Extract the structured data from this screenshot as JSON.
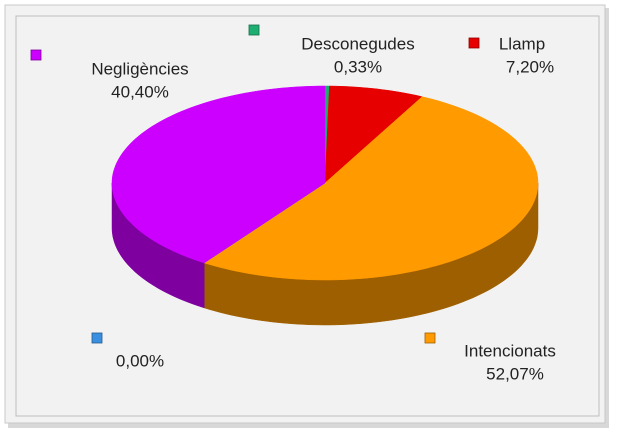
{
  "chart_data": {
    "type": "pie",
    "categories": [
      "Desconegudes",
      "Llamp",
      "Intencionats",
      null,
      "Negligències"
    ],
    "values": [
      0.33,
      7.2,
      52.07,
      0.0,
      40.4
    ],
    "value_labels": [
      "0,33%",
      "7,20%",
      "52,07%",
      "0,00%",
      "40,40%"
    ],
    "colors": [
      "#1fae72",
      "#e60000",
      "#ff9a00",
      "#3b8fe0",
      "#cc00ff"
    ]
  }
}
